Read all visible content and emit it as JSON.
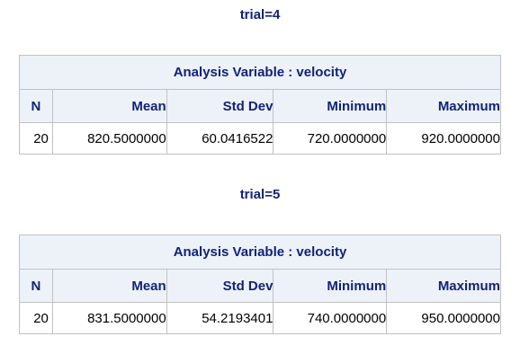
{
  "groups": [
    {
      "byline": "trial=4",
      "table": {
        "header": "Analysis Variable : velocity",
        "columns": [
          "N",
          "Mean",
          "Std Dev",
          "Minimum",
          "Maximum"
        ],
        "row": [
          "20",
          "820.5000000",
          "60.0416522",
          "720.0000000",
          "920.0000000"
        ]
      }
    },
    {
      "byline": "trial=5",
      "table": {
        "header": "Analysis Variable : velocity",
        "columns": [
          "N",
          "Mean",
          "Std Dev",
          "Minimum",
          "Maximum"
        ],
        "row": [
          "20",
          "831.5000000",
          "54.2193401",
          "740.0000000",
          "950.0000000"
        ]
      }
    }
  ],
  "colors": {
    "header_text": "#112277",
    "header_bg": "#edf2f9",
    "border": "#c1c1c1",
    "cell_text": "#000000"
  }
}
